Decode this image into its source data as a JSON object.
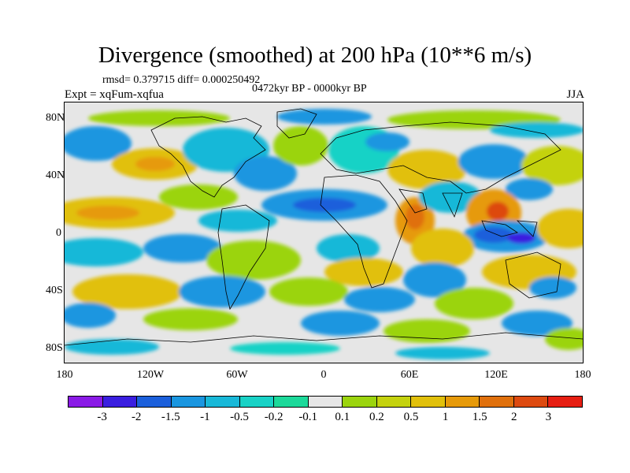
{
  "title": "Divergence (smoothed) at 200 hPa (10**6 m/s)",
  "rmsd_text": "rmsd= 0.379715 diff= 0.000250492",
  "period_text": "0472kyr BP - 0000kyr BP",
  "expt_text": "Expt = xqFum-xqfua",
  "season": "JJA",
  "lat_ticks": [
    "80N",
    "40N",
    "0",
    "40S",
    "80S"
  ],
  "lon_ticks": [
    "180",
    "120W",
    "60W",
    "0",
    "60E",
    "120E",
    "180"
  ],
  "colorbar": {
    "colors": [
      "#8a1ae6",
      "#3a1ee0",
      "#1b5fdb",
      "#1a96e0",
      "#18b8d8",
      "#19d2c6",
      "#1cd99a",
      "#e6e6e6",
      "#9bd40e",
      "#c4d20e",
      "#e1c00b",
      "#e69a0a",
      "#e0700c",
      "#dd4a10",
      "#e61e12"
    ],
    "labels": [
      "-3",
      "-2",
      "-1.5",
      "-1",
      "-0.5",
      "-0.2",
      "-0.1",
      "0.1",
      "0.2",
      "0.5",
      "1",
      "1.5",
      "2",
      "3"
    ]
  }
}
